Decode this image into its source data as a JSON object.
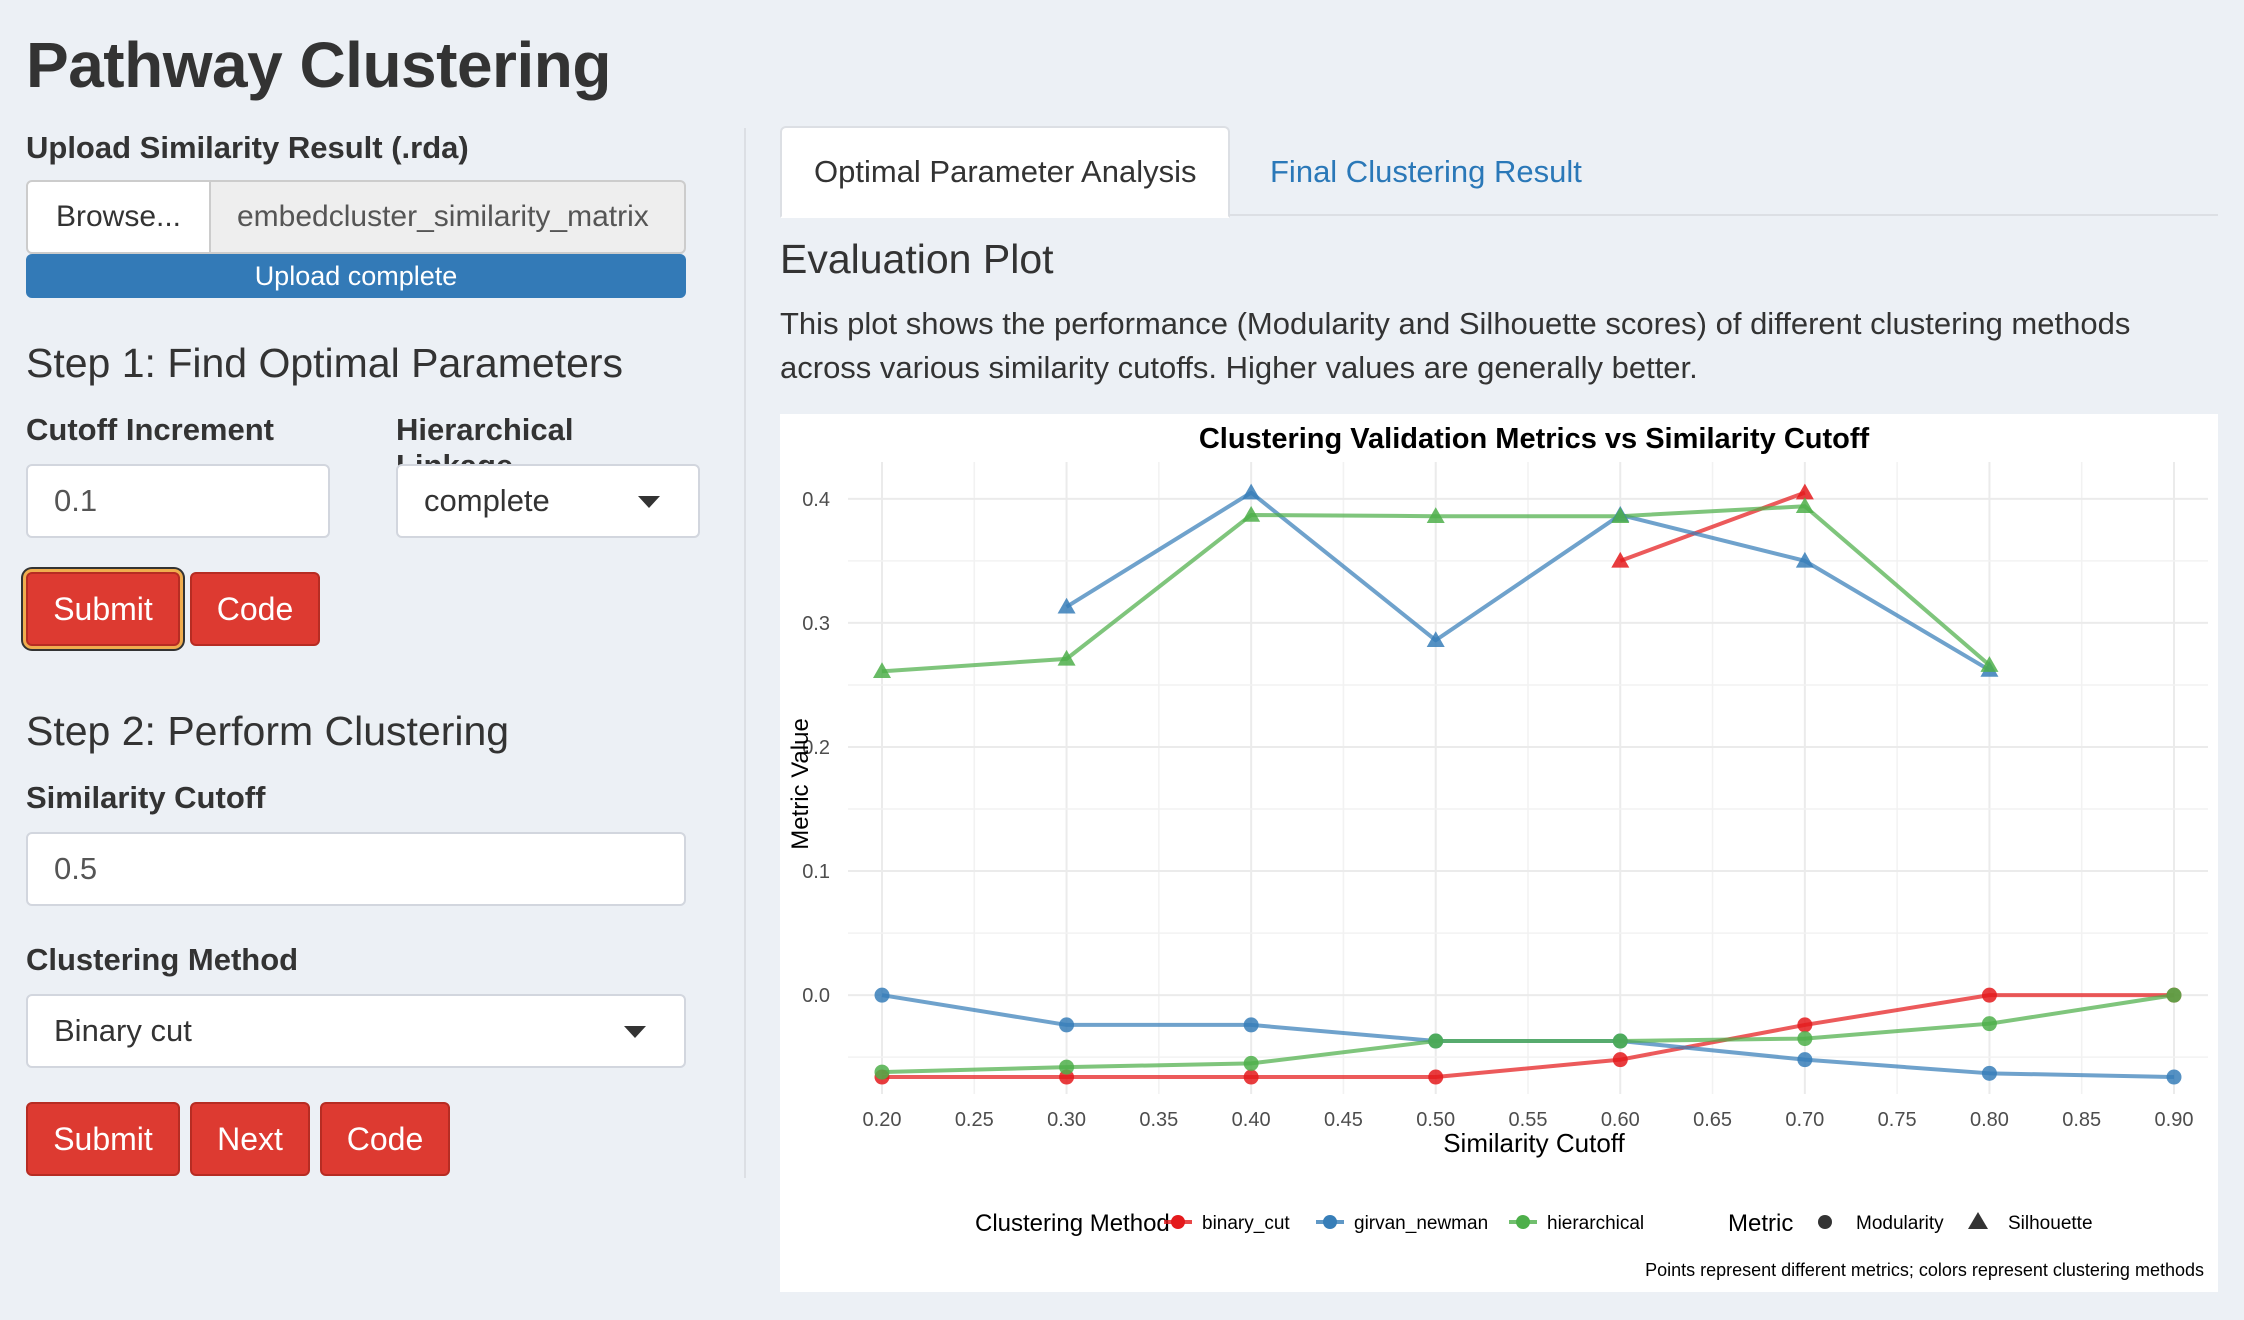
{
  "app": {
    "title": "Pathway Clustering"
  },
  "sidebar": {
    "upload": {
      "label": "Upload Similarity Result (.rda)",
      "browse_label": "Browse...",
      "file_name": "embedcluster_similarity_matrix",
      "progress_text": "Upload complete",
      "progress": 1.0
    },
    "step1": {
      "title": "Step 1: Find Optimal Parameters",
      "cutoff_increment_label": "Cutoff Increment",
      "cutoff_increment_value": "0.1",
      "linkage_label": "Hierarchical Linkage",
      "linkage_value": "complete",
      "submit_label": "Submit",
      "code_label": "Code"
    },
    "step2": {
      "title": "Step 2: Perform Clustering",
      "similarity_cutoff_label": "Similarity Cutoff",
      "similarity_cutoff_value": "0.5",
      "method_label": "Clustering Method",
      "method_value": "Binary cut",
      "submit_label": "Submit",
      "next_label": "Next",
      "code_label": "Code"
    }
  },
  "main": {
    "tabs": [
      {
        "label": "Optimal Parameter Analysis",
        "active": true
      },
      {
        "label": "Final Clustering Result",
        "active": false
      }
    ],
    "section_title": "Evaluation Plot",
    "description": "This plot shows the performance (Modularity and Silhouette scores) of different clustering methods across various similarity cutoffs. Higher values are generally better."
  },
  "colors": {
    "binary_cut": "#e41a1c",
    "girvan_newman": "#377eb8",
    "hierarchical": "#4daf4a",
    "danger_button": "#dd3a31",
    "primary": "#337ab7"
  },
  "chart_data": {
    "type": "line",
    "title": "Clustering Validation Metrics vs Similarity Cutoff",
    "xlabel": "Similarity Cutoff",
    "ylabel": "Metric Value",
    "xlim": [
      0.2,
      0.9
    ],
    "ylim": [
      -0.07,
      0.42
    ],
    "x_ticks": [
      "0.20",
      "0.25",
      "0.30",
      "0.35",
      "0.40",
      "0.45",
      "0.50",
      "0.55",
      "0.60",
      "0.65",
      "0.70",
      "0.75",
      "0.80",
      "0.85",
      "0.90"
    ],
    "y_ticks": [
      "0.0",
      "0.1",
      "0.2",
      "0.3",
      "0.4"
    ],
    "grid": true,
    "legend_position": "bottom",
    "legend": {
      "color_title": "Clustering Method",
      "shape_title": "Metric",
      "methods": [
        "binary_cut",
        "girvan_newman",
        "hierarchical"
      ],
      "metrics": [
        {
          "name": "Modularity",
          "shape": "circle"
        },
        {
          "name": "Silhouette",
          "shape": "triangle"
        }
      ]
    },
    "caption": "Points represent different metrics; colors represent clustering methods",
    "series": [
      {
        "method": "binary_cut",
        "metric": "Modularity",
        "x": [
          0.2,
          0.3,
          0.4,
          0.5,
          0.6,
          0.7,
          0.8,
          0.9
        ],
        "y": [
          -0.066,
          -0.066,
          -0.066,
          -0.066,
          -0.052,
          -0.024,
          0.0,
          0.0
        ]
      },
      {
        "method": "binary_cut",
        "metric": "Silhouette",
        "x": [
          0.6,
          0.7
        ],
        "y": [
          0.35,
          0.405
        ]
      },
      {
        "method": "girvan_newman",
        "metric": "Modularity",
        "x": [
          0.2,
          0.3,
          0.4,
          0.5,
          0.6,
          0.7,
          0.8,
          0.9
        ],
        "y": [
          0.0,
          -0.024,
          -0.024,
          -0.037,
          -0.037,
          -0.052,
          -0.063,
          -0.066
        ]
      },
      {
        "method": "girvan_newman",
        "metric": "Silhouette",
        "x": [
          0.3,
          0.4,
          0.5,
          0.6,
          0.7,
          0.8
        ],
        "y": [
          0.313,
          0.405,
          0.286,
          0.387,
          0.35,
          0.262
        ]
      },
      {
        "method": "hierarchical",
        "metric": "Modularity",
        "x": [
          0.2,
          0.3,
          0.4,
          0.5,
          0.6,
          0.7,
          0.8,
          0.9
        ],
        "y": [
          -0.062,
          -0.058,
          -0.055,
          -0.037,
          -0.037,
          -0.035,
          -0.023,
          0.0
        ]
      },
      {
        "method": "hierarchical",
        "metric": "Silhouette",
        "x": [
          0.2,
          0.3,
          0.4,
          0.5,
          0.6,
          0.7,
          0.8
        ],
        "y": [
          0.261,
          0.271,
          0.387,
          0.386,
          0.386,
          0.394,
          0.266
        ]
      }
    ]
  }
}
